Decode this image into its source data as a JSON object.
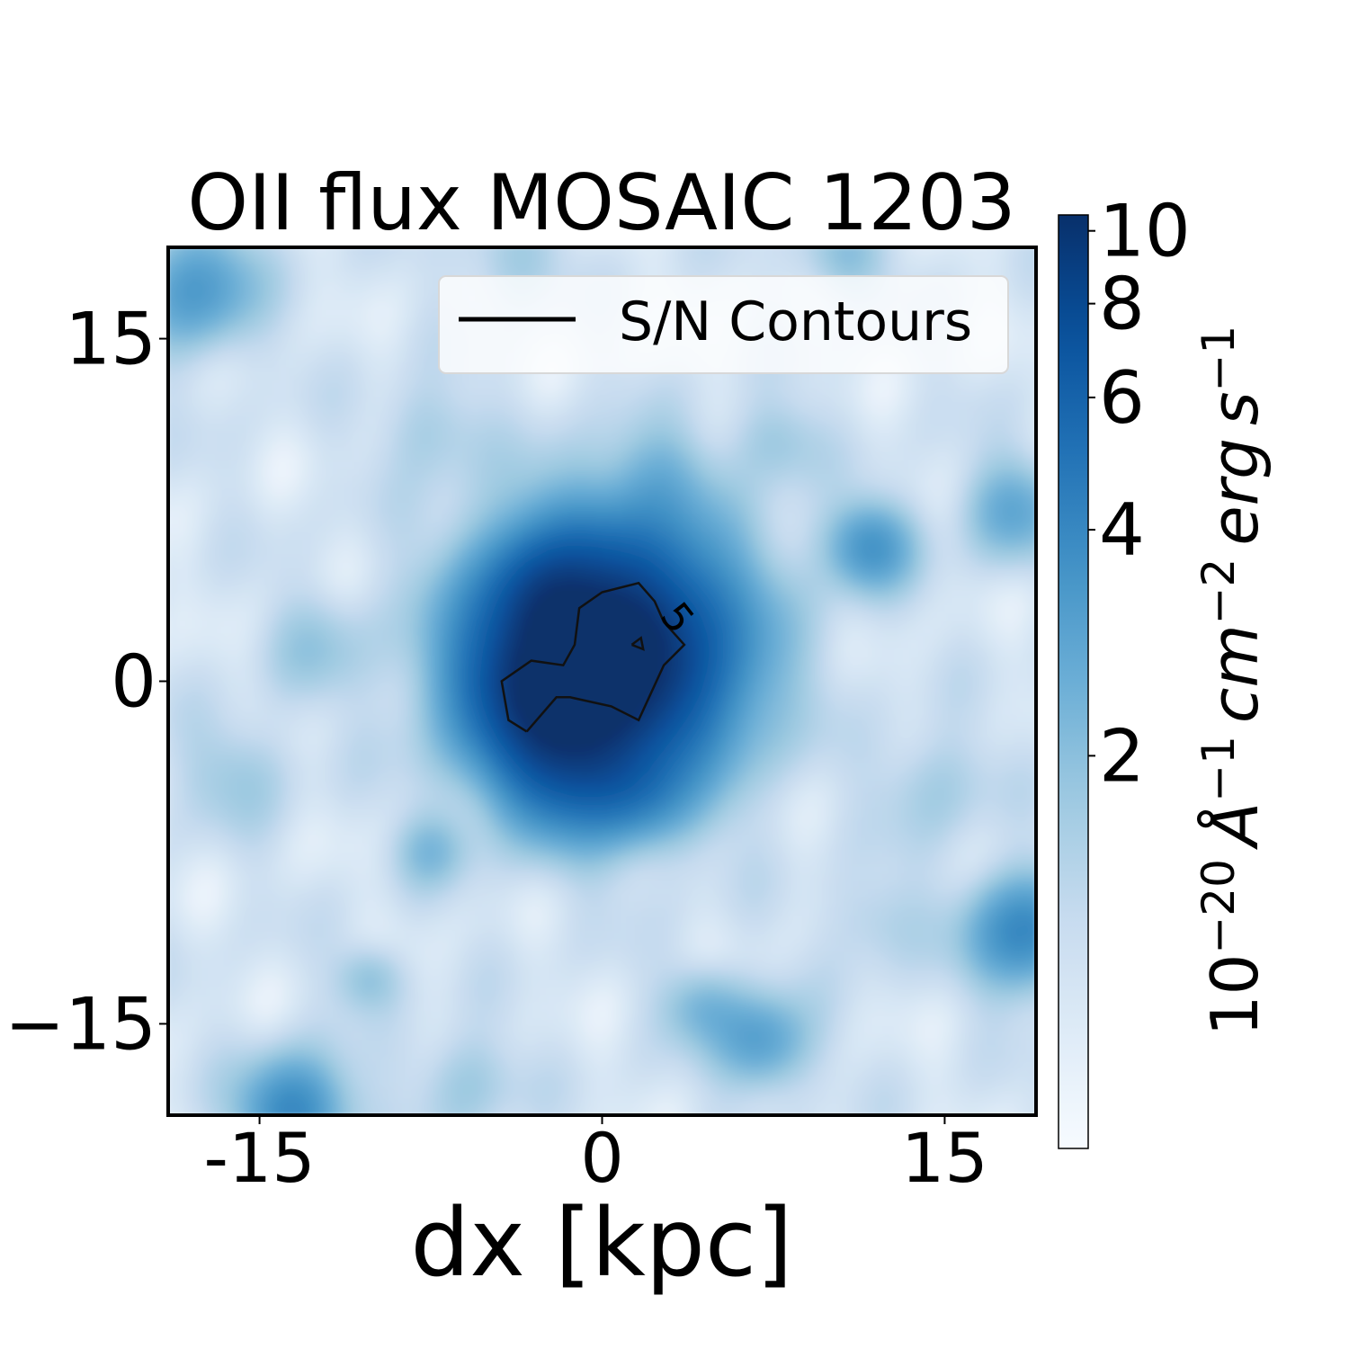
{
  "chart_data": {
    "type": "heatmap",
    "title": "OII flux MOSAIC 1203",
    "xlabel": "dx [kpc]",
    "ylabel": "",
    "xlim": [
      -19,
      19
    ],
    "ylim": [
      -19,
      19
    ],
    "x_ticks": [
      -15,
      0,
      15
    ],
    "x_tick_labels": [
      "-15",
      "0",
      "15"
    ],
    "y_ticks": [
      15,
      0,
      -15
    ],
    "y_tick_labels": [
      "15",
      "0",
      "−15"
    ],
    "colormap": "Blues",
    "colorbar": {
      "label_base": "10",
      "label_exp": "−20",
      "label_units": "Å",
      "label_units_exp": "−1",
      "label_cm": "cm",
      "label_cm_exp": "−2",
      "label_erg": "erg",
      "label_s": "s",
      "label_s_exp": "−1",
      "scale": "log",
      "range": [
        0.6,
        10.5
      ],
      "ticks": [
        2,
        4,
        6,
        8,
        10
      ],
      "tick_labels": [
        "2",
        "4",
        "6",
        "8",
        "10"
      ]
    },
    "legend": {
      "label": "S/N Contours",
      "placement": "top-right"
    },
    "contour": {
      "level": 5,
      "level_label": "5",
      "points": [
        [
          -3.3,
          -2.2
        ],
        [
          -4.1,
          -1.7
        ],
        [
          -4.4,
          0.0
        ],
        [
          -3.1,
          0.9
        ],
        [
          -1.7,
          0.7
        ],
        [
          -1.2,
          1.6
        ],
        [
          -1.0,
          3.2
        ],
        [
          0.0,
          3.9
        ],
        [
          1.6,
          4.3
        ],
        [
          2.3,
          3.5
        ],
        [
          2.7,
          2.6
        ],
        [
          3.6,
          1.6
        ],
        [
          2.7,
          0.7
        ],
        [
          1.6,
          -1.7
        ],
        [
          0.4,
          -1.1
        ],
        [
          -1.4,
          -0.7
        ],
        [
          -2.0,
          -0.7
        ],
        [
          -3.3,
          -2.2
        ]
      ],
      "inner_points": [
        [
          1.3,
          1.6
        ],
        [
          1.7,
          1.9
        ],
        [
          1.8,
          1.4
        ],
        [
          1.3,
          1.6
        ]
      ]
    },
    "blobs": [
      {
        "x": 0.2,
        "y": 1.2,
        "sigma": 3.6,
        "amp": 11.5
      },
      {
        "x": -3.0,
        "y": -0.4,
        "sigma": 2.2,
        "amp": 3.5
      },
      {
        "x": -1.5,
        "y": -3.8,
        "sigma": 2.0,
        "amp": 3.0
      },
      {
        "x": -2.8,
        "y": 4.0,
        "sigma": 1.6,
        "amp": 2.0
      },
      {
        "x": 1.6,
        "y": -5.0,
        "sigma": 1.4,
        "amp": 1.4
      },
      {
        "x": 11.7,
        "y": 5.9,
        "sigma": 1.3,
        "amp": 2.4
      },
      {
        "x": 18.5,
        "y": -11.0,
        "sigma": 1.7,
        "amp": 3.0
      },
      {
        "x": -13.5,
        "y": -18.8,
        "sigma": 1.6,
        "amp": 3.0
      },
      {
        "x": -17.8,
        "y": 17.2,
        "sigma": 1.8,
        "amp": 2.2
      },
      {
        "x": 7.0,
        "y": -15.8,
        "sigma": 1.4,
        "amp": 2.0
      },
      {
        "x": 18.0,
        "y": 7.5,
        "sigma": 1.5,
        "amp": 1.6
      },
      {
        "x": 4.4,
        "y": -14.2,
        "sigma": 1.2,
        "amp": 1.2
      },
      {
        "x": -10.2,
        "y": -13.0,
        "sigma": 1.0,
        "amp": 1.0
      },
      {
        "x": -7.5,
        "y": -7.4,
        "sigma": 1.1,
        "amp": 1.0
      },
      {
        "x": 10.5,
        "y": 18.6,
        "sigma": 1.2,
        "amp": 1.1
      },
      {
        "x": -4.0,
        "y": 18.5,
        "sigma": 1.4,
        "amp": 0.8
      },
      {
        "x": 2.5,
        "y": 9.0,
        "sigma": 1.5,
        "amp": 0.8
      },
      {
        "x": 7.6,
        "y": 10.5,
        "sigma": 1.3,
        "amp": 0.8
      },
      {
        "x": -16.0,
        "y": -4.0,
        "sigma": 1.7,
        "amp": 0.7
      },
      {
        "x": 14.5,
        "y": -4.5,
        "sigma": 1.7,
        "amp": 0.7
      },
      {
        "x": -7.5,
        "y": 11.0,
        "sigma": 1.5,
        "amp": 0.7
      },
      {
        "x": -12.5,
        "y": 1.5,
        "sigma": 1.6,
        "amp": 0.7
      },
      {
        "x": 12.0,
        "y": -10.5,
        "sigma": 1.5,
        "amp": 0.6
      },
      {
        "x": -6.0,
        "y": -17.5,
        "sigma": 1.5,
        "amp": 0.8
      }
    ]
  }
}
